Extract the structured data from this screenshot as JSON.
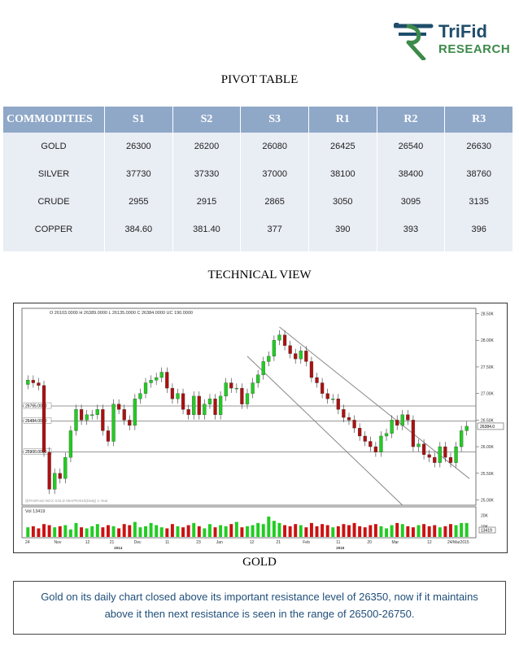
{
  "logo": {
    "line1": "TriFid",
    "line2": "RESEARCH",
    "colors": {
      "dark": "#1f4d6b",
      "green": "#3d8a4a"
    }
  },
  "titles": {
    "pivot": "PIVOT TABLE",
    "technical": "TECHNICAL VIEW",
    "gold": "GOLD"
  },
  "table": {
    "headers": [
      "COMMODITIES",
      "S1",
      "S2",
      "S3",
      "R1",
      "R2",
      "R3"
    ],
    "rows": [
      [
        "GOLD",
        "26300",
        "26200",
        "26080",
        "26425",
        "26540",
        "26630"
      ],
      [
        "SILVER",
        "37730",
        "37330",
        "37000",
        "38100",
        "38400",
        "38760"
      ],
      [
        "CRUDE",
        "2955",
        "2915",
        "2865",
        "3050",
        "3095",
        "3135"
      ],
      [
        "COPPER",
        "384.60",
        "381.40",
        "377",
        "390",
        "393",
        "396"
      ]
    ]
  },
  "chart_data": {
    "type": "candlestick",
    "header": "O 26103.0000  H 26389.0000  L 26135.0000  C 26384.0000  UC 190.0000",
    "watermark": "@FirstPoint MCX GOLD 05APR2015(Daily) 1-Year",
    "y_ticks": [
      "28.50K",
      "28.00K",
      "27.50K",
      "27.00K",
      "26.50K",
      "26.00K",
      "25.50K",
      "25.00K"
    ],
    "y_range": [
      24900,
      28600
    ],
    "last_price_label": "26384.0",
    "levels": [
      {
        "label": "26765.0000",
        "value": 26765
      },
      {
        "label": "26484.0000",
        "value": 26484
      },
      {
        "label": "25900.0000",
        "value": 25900
      }
    ],
    "x_ticks": [
      "24",
      "Nov",
      "12",
      "21",
      "Dec",
      "11",
      "23",
      "Jan",
      "12",
      "21",
      "Feb",
      "11",
      "20",
      "Mar",
      "12",
      "24/Mar2015"
    ],
    "year_labels": [
      "2014",
      "2015"
    ],
    "volume_label": "Vol 13419",
    "volume_ticks": [
      "20K",
      "10K"
    ],
    "volume_last": "13419",
    "closes": [
      27250,
      27200,
      27150,
      25900,
      25200,
      25500,
      25400,
      25800,
      26300,
      26700,
      26500,
      26600,
      26600,
      26700,
      26300,
      26100,
      26800,
      26700,
      26500,
      26400,
      26900,
      27000,
      27200,
      27250,
      27300,
      27400,
      27100,
      26900,
      27000,
      26700,
      26600,
      26950,
      26600,
      26800,
      26900,
      26600,
      26950,
      27200,
      27100,
      27100,
      26800,
      27000,
      27200,
      27350,
      27600,
      27700,
      28000,
      28100,
      27900,
      27750,
      27650,
      27800,
      27600,
      27300,
      27200,
      27000,
      26900,
      26900,
      26700,
      26550,
      26500,
      26350,
      26200,
      26100,
      26000,
      25900,
      26200,
      26250,
      26500,
      26400,
      26600,
      26500,
      26000,
      26050,
      25850,
      25800,
      25700,
      26000,
      25800,
      25700,
      26000,
      26300,
      26384
    ],
    "volumes": [
      9,
      10,
      8,
      12,
      11,
      9,
      10,
      11,
      7,
      13,
      9,
      8,
      10,
      12,
      9,
      11,
      10,
      8,
      12,
      11,
      14,
      9,
      10,
      13,
      11,
      9,
      8,
      12,
      10,
      9,
      11,
      13,
      10,
      8,
      12,
      9,
      11,
      10,
      12,
      14,
      9,
      10,
      11,
      13,
      12,
      19,
      15,
      13,
      11,
      10,
      12,
      11,
      9,
      13,
      10,
      12,
      11,
      9,
      10,
      12,
      11,
      13,
      10,
      9,
      11,
      12,
      10,
      8,
      11,
      13,
      12,
      10,
      9,
      11,
      12,
      10,
      11,
      9,
      10,
      12,
      11,
      13,
      13
    ]
  },
  "note": "Gold on its daily chart closed above its important resistance level of 26350, now if it maintains above it then next resistance is seen in the range of 26500-26750."
}
